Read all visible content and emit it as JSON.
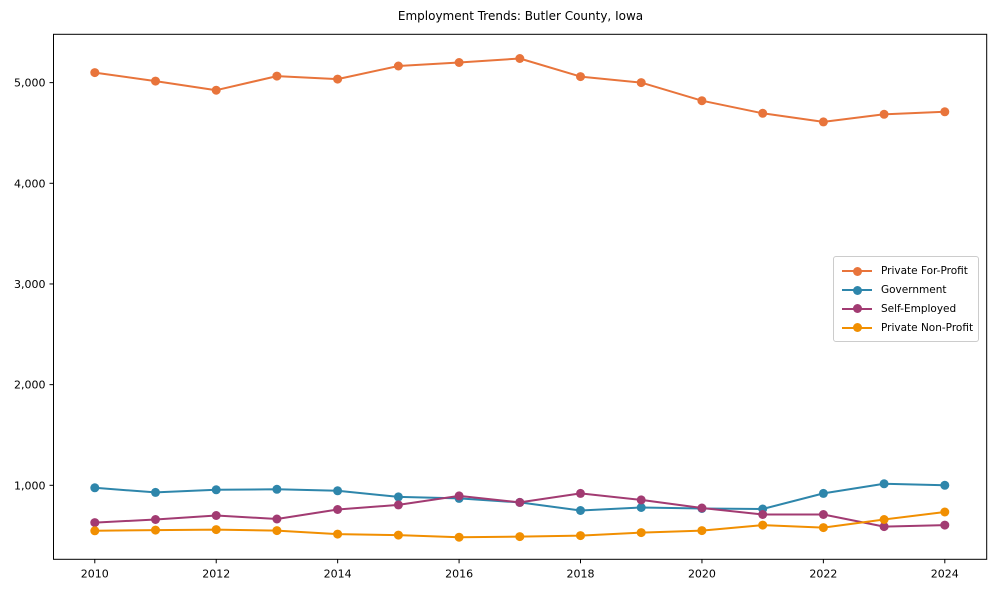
{
  "title": "Employment Trends: Butler County, Iowa",
  "chart_data": {
    "type": "line",
    "title": "Employment Trends: Butler County, Iowa",
    "xlabel": "",
    "ylabel": "",
    "x": [
      2010,
      2011,
      2012,
      2013,
      2014,
      2015,
      2016,
      2017,
      2018,
      2019,
      2020,
      2021,
      2022,
      2023,
      2024
    ],
    "x_tick_labels": [
      "2010",
      "2012",
      "2014",
      "2016",
      "2018",
      "2020",
      "2022",
      "2024"
    ],
    "x_ticks": [
      2010,
      2012,
      2014,
      2016,
      2018,
      2020,
      2022,
      2024
    ],
    "y_ticks": [
      1000,
      2000,
      3000,
      4000,
      5000
    ],
    "y_tick_labels": [
      "1,000",
      "2,000",
      "3,000",
      "4,000",
      "5,000"
    ],
    "xlim": [
      2009.32,
      2024.69
    ],
    "ylim": [
      265,
      5480
    ],
    "grid": false,
    "legend_position": "center right",
    "series": [
      {
        "name": "Private For-Profit",
        "color": "#e8743b",
        "values": [
          5100,
          5015,
          4925,
          5065,
          5035,
          5165,
          5200,
          5240,
          5060,
          5000,
          4820,
          4695,
          4610,
          4685,
          4710
        ]
      },
      {
        "name": "Government",
        "color": "#2e86ab",
        "values": [
          975,
          930,
          955,
          960,
          945,
          885,
          870,
          830,
          750,
          780,
          770,
          765,
          920,
          1015,
          1000
        ]
      },
      {
        "name": "Self-Employed",
        "color": "#a23b72",
        "values": [
          630,
          660,
          700,
          665,
          760,
          805,
          895,
          830,
          920,
          855,
          775,
          710,
          710,
          590,
          605
        ]
      },
      {
        "name": "Private Non-Profit",
        "color": "#f18f01",
        "values": [
          548,
          555,
          560,
          550,
          515,
          505,
          485,
          490,
          500,
          530,
          550,
          605,
          580,
          660,
          735
        ]
      }
    ]
  }
}
